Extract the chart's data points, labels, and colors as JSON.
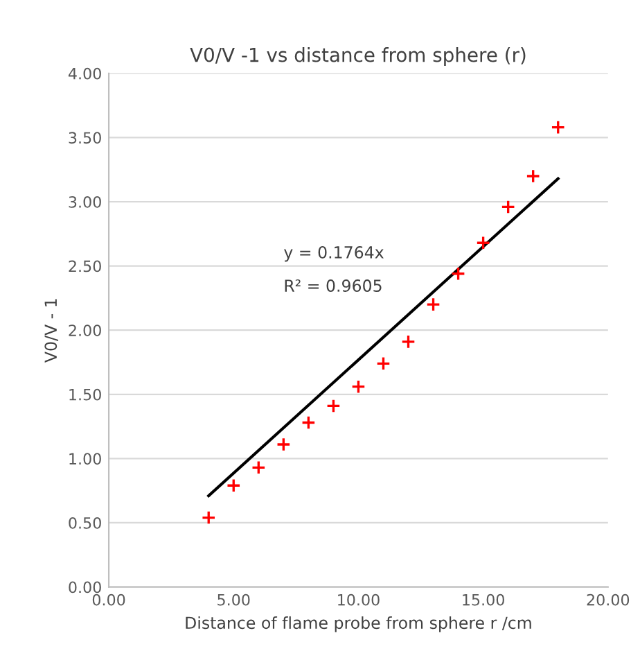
{
  "chart_data": {
    "type": "scatter",
    "title": "V0/V -1 vs distance from sphere (r)",
    "xlabel": "Distance of flame probe from sphere r /cm",
    "ylabel": "V0/V - 1",
    "series": [
      {
        "color": "#ff0000",
        "marker": "cross",
        "x": [
          4,
          5,
          6,
          7,
          8,
          9,
          10,
          11,
          12,
          13,
          14,
          15,
          16,
          17,
          18
        ],
        "values": [
          0.54,
          0.79,
          0.93,
          1.11,
          1.28,
          1.41,
          1.56,
          1.74,
          1.91,
          2.2,
          2.44,
          2.68,
          2.96,
          3.2,
          3.58
        ]
      },
      {
        "type": "line",
        "color": "#000000",
        "marker": "none",
        "x": [
          4,
          18
        ],
        "values": [
          0.71,
          3.18
        ]
      }
    ],
    "annotations": [
      "y = 0.1764x",
      "R² = 0.9605"
    ],
    "xlim": [
      0,
      20
    ],
    "ylim": [
      0,
      4
    ],
    "xticks": [
      {
        "value": 0,
        "label": "0.00"
      },
      {
        "value": 5,
        "label": "5.00"
      },
      {
        "value": 10,
        "label": "10.00"
      },
      {
        "value": 15,
        "label": "15.00"
      },
      {
        "value": 20,
        "label": "20.00"
      }
    ],
    "yticks": [
      {
        "value": 0,
        "label": "0.00"
      },
      {
        "value": 0.5,
        "label": "0.50"
      },
      {
        "value": 1,
        "label": "1.00"
      },
      {
        "value": 1.5,
        "label": "1.50"
      },
      {
        "value": 2,
        "label": "2.00"
      },
      {
        "value": 2.5,
        "label": "2.50"
      },
      {
        "value": 3,
        "label": "3.00"
      },
      {
        "value": 3.5,
        "label": "3.50"
      },
      {
        "value": 4,
        "label": "4.00"
      }
    ],
    "grid": "y",
    "legend": false
  }
}
